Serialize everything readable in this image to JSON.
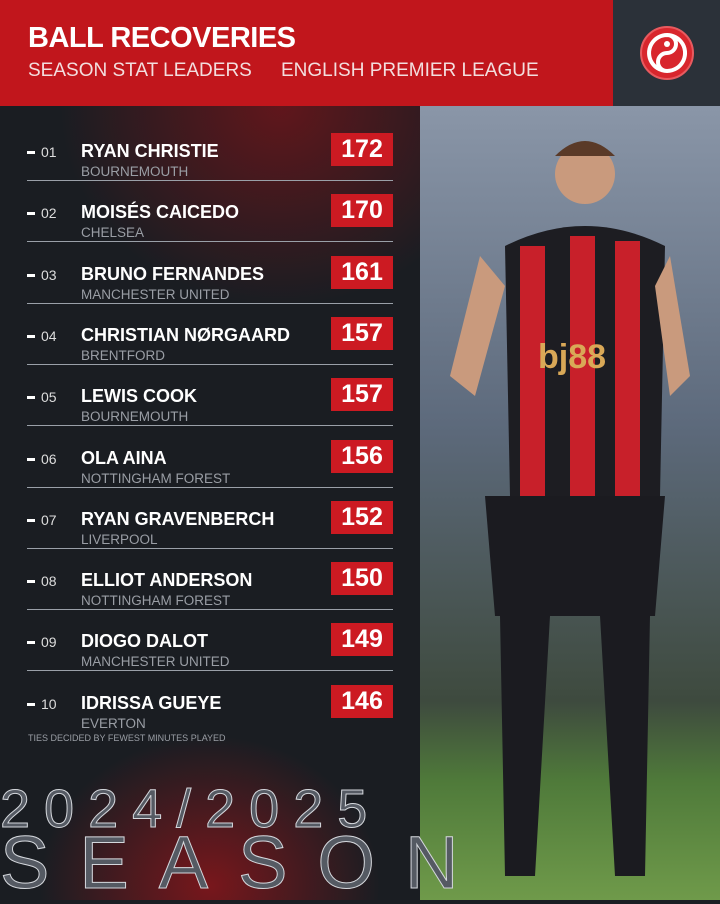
{
  "header": {
    "title": "BALL RECOVERIES",
    "subtitle": "SEASON STAT LEADERS",
    "league": "ENGLISH PREMIER LEAGUE",
    "logo_icon": "swirl-logo-icon"
  },
  "colors": {
    "accent": "#c1161c",
    "background": "#1a1d22"
  },
  "leaders": [
    {
      "rank": "01",
      "name": "RYAN CHRISTIE",
      "club": "BOURNEMOUTH",
      "value": "172"
    },
    {
      "rank": "02",
      "name": "MOISÉS CAICEDO",
      "club": "CHELSEA",
      "value": "170"
    },
    {
      "rank": "03",
      "name": "BRUNO FERNANDES",
      "club": "MANCHESTER UNITED",
      "value": "161"
    },
    {
      "rank": "04",
      "name": "CHRISTIAN NØRGAARD",
      "club": "BRENTFORD",
      "value": "157"
    },
    {
      "rank": "05",
      "name": "LEWIS COOK",
      "club": "BOURNEMOUTH",
      "value": "157"
    },
    {
      "rank": "06",
      "name": "OLA AINA",
      "club": "NOTTINGHAM FOREST",
      "value": "156"
    },
    {
      "rank": "07",
      "name": "RYAN GRAVENBERCH",
      "club": "LIVERPOOL",
      "value": "152"
    },
    {
      "rank": "08",
      "name": "ELLIOT ANDERSON",
      "club": "NOTTINGHAM FOREST",
      "value": "150"
    },
    {
      "rank": "09",
      "name": "DIOGO DALOT",
      "club": "MANCHESTER UNITED",
      "value": "149"
    },
    {
      "rank": "10",
      "name": "IDRISSA GUEYE",
      "club": "EVERTON",
      "value": "146"
    }
  ],
  "footnote": "TIES DECIDED BY FEWEST MINUTES PLAYED",
  "season_years": "2024/2025",
  "season_word": "SEASON",
  "photo": {
    "shirt_sponsor": "bj88"
  }
}
